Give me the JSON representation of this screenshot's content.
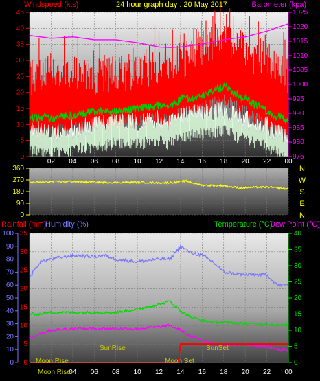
{
  "header": {
    "left_title": "Windspeed (kts)",
    "center_title": "24 hour graph day : 20 May 2017",
    "right_title": "Barometer (kpa)"
  },
  "labels": {
    "compass": [
      "N",
      "W",
      "S",
      "E",
      "N"
    ],
    "rainfall": "Rainfall (mm)",
    "humidity": "Humidity (%)",
    "temperature": "Temperature (°C)",
    "dewpoint": "Dew Point (°C)",
    "sunrise": "SunRise",
    "sunset": "SunSet",
    "moonrise": "Moon Rise",
    "moonset": "Moon Set"
  },
  "colors": {
    "wind_avg": "#ff0000",
    "wind_gust": "#ffffff",
    "wind_green": "#00cc00",
    "barometer": "#ff00ff",
    "direction": "#ffff00",
    "humidity": "#7777ff",
    "temperature": "#00dd00",
    "dewpoint": "#ff00ff",
    "rain": "#ff0000",
    "astro_text": "#cccc00"
  },
  "chart_data": [
    {
      "type": "line",
      "title": "24 hour graph day : 20 May 2017",
      "x_ticks": [
        "02",
        "04",
        "06",
        "08",
        "10",
        "12",
        "14",
        "16",
        "18",
        "20",
        "22",
        "00"
      ],
      "ylabel": "Windspeed (kts)",
      "ylim": [
        0,
        45
      ],
      "y_ticks": [
        0,
        5,
        10,
        15,
        20,
        25,
        30,
        35,
        40,
        45
      ],
      "y2label": "Barometer (kpa)",
      "y2lim": [
        975,
        1025
      ],
      "y2_ticks": [
        975,
        980,
        985,
        990,
        995,
        1000,
        1005,
        1010,
        1015,
        1020,
        1025
      ],
      "x_hours": [
        0,
        2,
        4,
        6,
        8,
        10,
        12,
        13,
        14,
        16,
        18,
        20,
        22,
        24
      ],
      "series": [
        {
          "key": "gust",
          "values": [
            22,
            24,
            23,
            22,
            23,
            24,
            26,
            25,
            27,
            32,
            35,
            30,
            28,
            22
          ]
        },
        {
          "key": "average",
          "values": [
            12,
            12,
            13,
            14,
            14,
            15,
            16,
            15,
            18,
            19,
            22,
            18,
            14,
            11
          ]
        },
        {
          "key": "low",
          "values": [
            8,
            7,
            8,
            9,
            10,
            10,
            11,
            10,
            12,
            13,
            14,
            11,
            9,
            5
          ]
        },
        {
          "key": "barometer",
          "values": [
            1017,
            1016,
            1016.5,
            1015.5,
            1015.5,
            1014.5,
            1013,
            1012.8,
            1013,
            1014,
            1015.5,
            1016.5,
            1018.5,
            1021
          ]
        }
      ]
    },
    {
      "type": "line",
      "y_ticks": [
        0,
        90,
        180,
        270,
        360
      ],
      "ylim": [
        0,
        360
      ],
      "x_hours": [
        0,
        2,
        4,
        6,
        8,
        10,
        12,
        13.5,
        14.5,
        16,
        18,
        19.5,
        20,
        22,
        24
      ],
      "series": [
        {
          "key": "direction",
          "values": [
            250,
            255,
            258,
            252,
            250,
            252,
            248,
            250,
            262,
            228,
            225,
            208,
            210,
            215,
            200
          ]
        }
      ]
    },
    {
      "type": "line",
      "ylabel": "Rainfall (mm)",
      "ylim": [
        0,
        35
      ],
      "y_ticks_rain": [
        0,
        5,
        10,
        15,
        20,
        25,
        30,
        35
      ],
      "y_ticks_humidity": [
        0,
        10,
        20,
        30,
        40,
        50,
        60,
        70,
        80,
        90,
        100
      ],
      "y2label": "Temperature (°C)",
      "y2lim": [
        0,
        40
      ],
      "y2_ticks": [
        0,
        5,
        10,
        15,
        20,
        25,
        30,
        35,
        40
      ],
      "x_hours": [
        0,
        1,
        2,
        4,
        6,
        7,
        8,
        10,
        12,
        13,
        14,
        15,
        16,
        17,
        18,
        20,
        22,
        23,
        24
      ],
      "series": [
        {
          "key": "humidity",
          "values": [
            66,
            78,
            80,
            83,
            82,
            83,
            80,
            78,
            80,
            80,
            90,
            85,
            83,
            78,
            70,
            68,
            68,
            60,
            60
          ]
        },
        {
          "key": "temperature",
          "values": [
            15,
            15,
            15.5,
            15.5,
            15.5,
            15.5,
            15.5,
            16.5,
            18,
            19,
            16,
            14,
            13,
            12.5,
            12.5,
            12,
            12,
            11.5,
            11.5
          ]
        },
        {
          "key": "dewpoint",
          "values": [
            7.5,
            9,
            10,
            10.5,
            10.5,
            10.5,
            10.5,
            10.5,
            11,
            11.5,
            10,
            8,
            7,
            6,
            5.5,
            5.5,
            5,
            4,
            3.5
          ]
        }
      ],
      "rain": {
        "hours": [
          0,
          13.8,
          14,
          24
        ],
        "values": [
          0,
          0,
          5,
          5
        ]
      }
    }
  ]
}
